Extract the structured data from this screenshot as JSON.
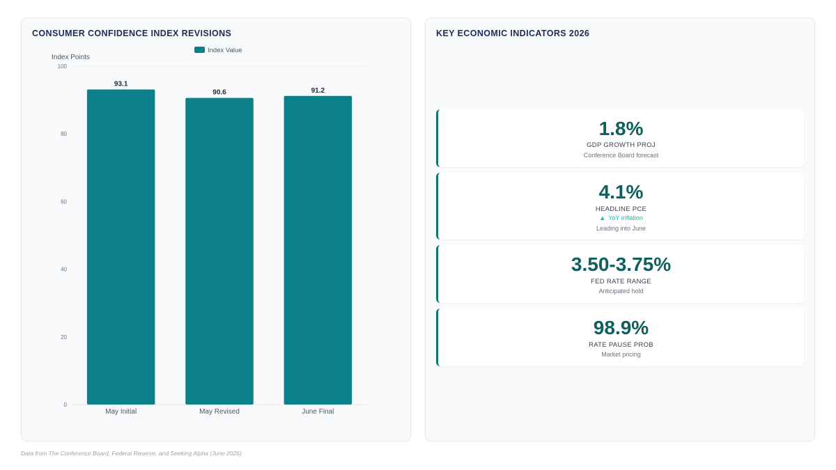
{
  "left_panel": {
    "title": "CONSUMER CONFIDENCE INDEX REVISIONS"
  },
  "chart_data": {
    "type": "bar",
    "categories": [
      "May Initial",
      "May Revised",
      "June Final"
    ],
    "series": [
      {
        "name": "Index Value",
        "values": [
          93.1,
          90.6,
          91.2
        ]
      }
    ],
    "data_labels": [
      "93.1",
      "90.6",
      "91.2"
    ],
    "xlabel": "",
    "ylabel": "Index Points",
    "ylim": [
      0,
      100
    ],
    "yticks": [
      0,
      20,
      40,
      60,
      80,
      100
    ],
    "grid": false,
    "legend": "top",
    "bar_color": "#0b8088"
  },
  "right_panel": {
    "title": "KEY ECONOMIC INDICATORS 2026",
    "cards": [
      {
        "value": "1.8%",
        "label": "GDP GROWTH PROJ",
        "sub": "Conference Board forecast"
      },
      {
        "value": "4.1%",
        "label": "HEADLINE PCE",
        "trend_icon": "up-triangle-icon",
        "trend_arrow": "▲",
        "trend": "YoY inflation",
        "sub": "Leading into June"
      },
      {
        "value": "3.50-3.75%",
        "label": "FED RATE RANGE",
        "sub": "Anticipated hold"
      },
      {
        "value": "98.9%",
        "label": "RATE PAUSE PROB",
        "sub": "Market pricing"
      }
    ]
  },
  "colors": {
    "accent": "#0f766e",
    "kpi_value": "#0f5f5f",
    "trend_up": "#14b8a6",
    "title": "#1e2a5a"
  },
  "footnote": "Data from The Conference Board, Federal Reserve, and Seeking Alpha (June 2026)"
}
